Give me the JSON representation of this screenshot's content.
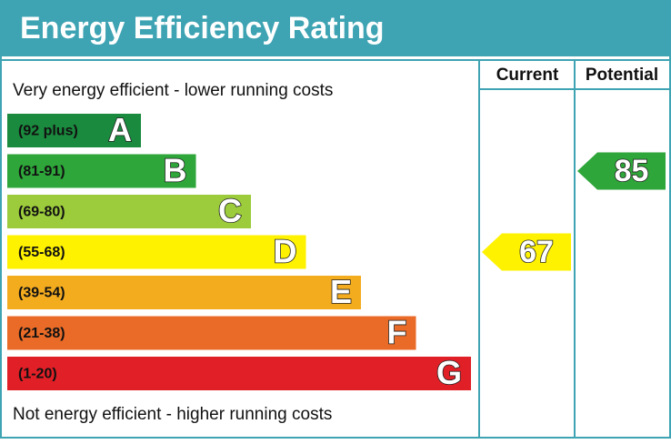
{
  "header": {
    "title": "Energy Efficiency Rating"
  },
  "top_note": "Very energy efficient - lower running costs",
  "bottom_note": "Not energy efficient - higher running costs",
  "columns": [
    "Current",
    "Potential"
  ],
  "bands": [
    {
      "range": "(92 plus)",
      "letter": "A",
      "color": "#1a8a3e"
    },
    {
      "range": "(81-91)",
      "letter": "B",
      "color": "#2ea63a"
    },
    {
      "range": "(69-80)",
      "letter": "C",
      "color": "#9ccb3b"
    },
    {
      "range": "(55-68)",
      "letter": "D",
      "color": "#fff200"
    },
    {
      "range": "(39-54)",
      "letter": "E",
      "color": "#f4ac1f"
    },
    {
      "range": "(21-38)",
      "letter": "F",
      "color": "#ea6b27"
    },
    {
      "range": "(1-20)",
      "letter": "G",
      "color": "#e11f26"
    }
  ],
  "ratings": {
    "current": 67,
    "potential": 85
  }
}
